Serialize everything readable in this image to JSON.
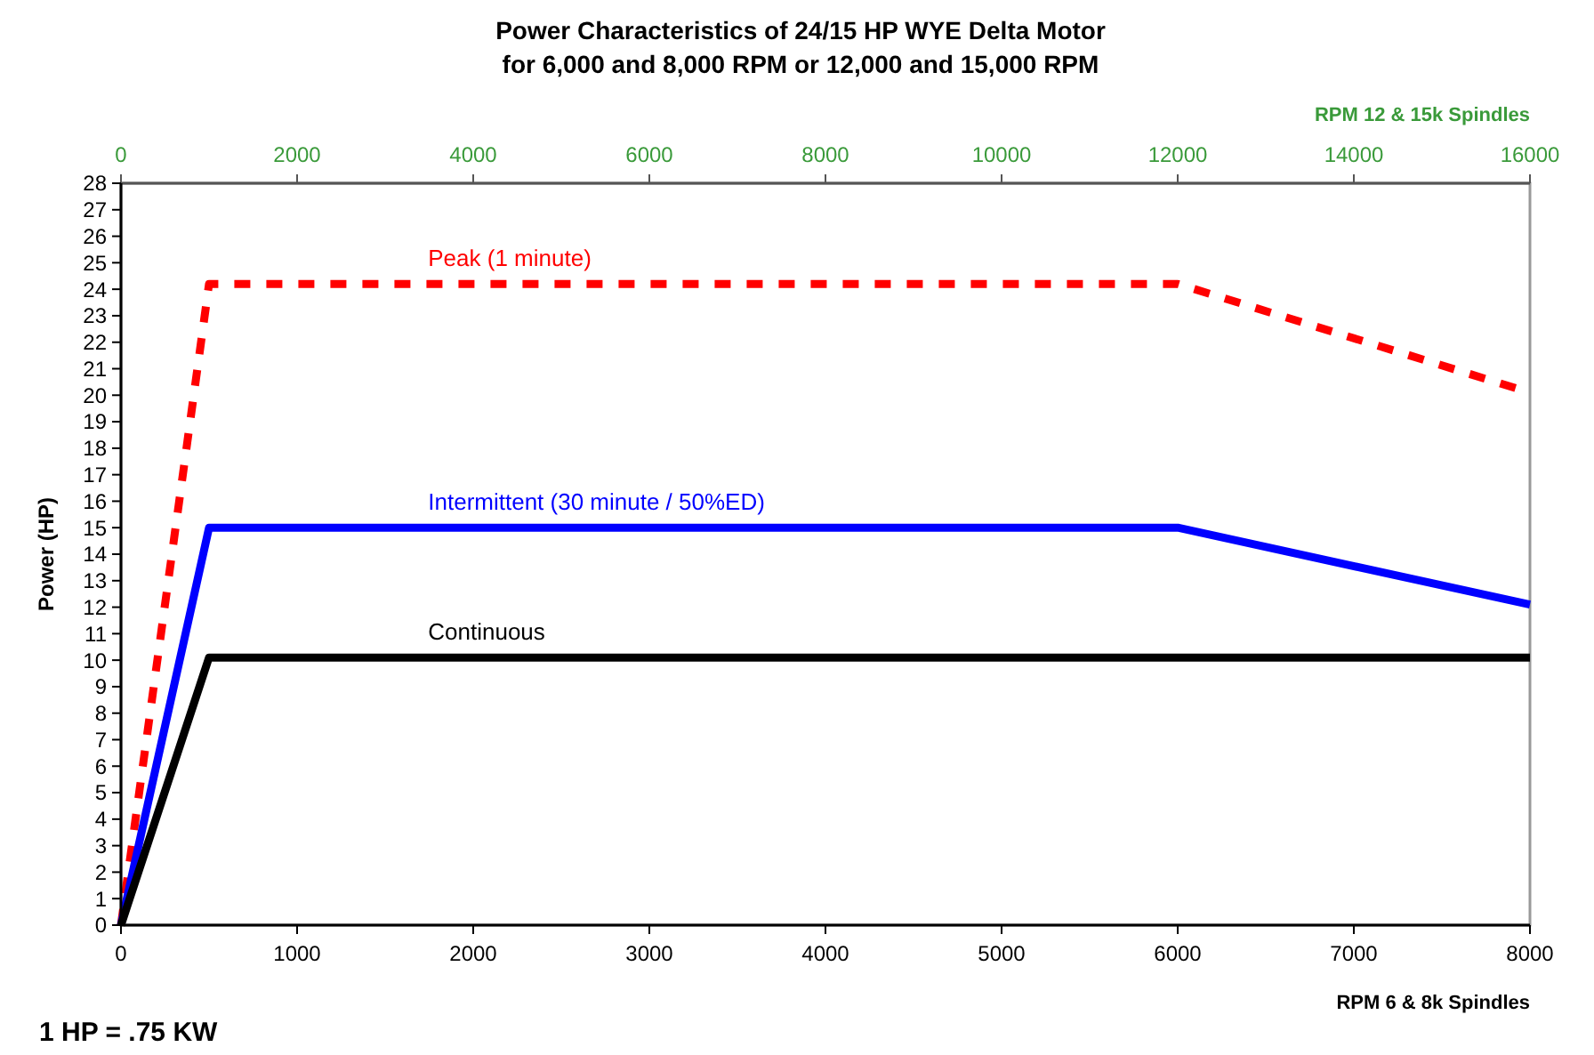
{
  "chart_data": {
    "type": "line",
    "title": "Power Characteristics of 24/15 HP WYE Delta Motor",
    "subtitle": "for 6,000 and 8,000 RPM or 12,000 and 15,000 RPM",
    "xlabel": "RPM 6 & 8k Spindles",
    "x2label": "RPM 12 & 15k Spindles",
    "ylabel": "Power (HP)",
    "annotations": [
      "1 HP = .75 KW"
    ],
    "xlim": [
      0,
      8000
    ],
    "xticks": [
      0,
      1000,
      2000,
      3000,
      4000,
      5000,
      6000,
      7000,
      8000
    ],
    "x2lim": [
      0,
      16000
    ],
    "x2ticks": [
      0,
      2000,
      4000,
      6000,
      8000,
      10000,
      12000,
      14000,
      16000
    ],
    "ylim": [
      0,
      28
    ],
    "yticks": [
      0,
      1,
      2,
      3,
      4,
      5,
      6,
      7,
      8,
      9,
      10,
      11,
      12,
      13,
      14,
      15,
      16,
      17,
      18,
      19,
      20,
      21,
      22,
      23,
      24,
      25,
      26,
      27,
      28
    ],
    "grid": false,
    "marker": "none",
    "series": [
      {
        "name": "Peak (1 minute)",
        "color": "#ff0000",
        "line_style": "dashed",
        "x": [
          0,
          500,
          6000,
          8000
        ],
        "values": [
          0,
          24.2,
          24.2,
          20.1
        ]
      },
      {
        "name": "Intermittent (30 minute / 50%ED)",
        "color": "#0000ff",
        "line_style": "solid",
        "x": [
          0,
          500,
          6000,
          8000
        ],
        "values": [
          0,
          15,
          15,
          12.1
        ]
      },
      {
        "name": "Continuous",
        "color": "#000000",
        "line_style": "solid",
        "x": [
          0,
          500,
          8000
        ],
        "values": [
          0,
          10.1,
          10.1
        ]
      }
    ]
  }
}
